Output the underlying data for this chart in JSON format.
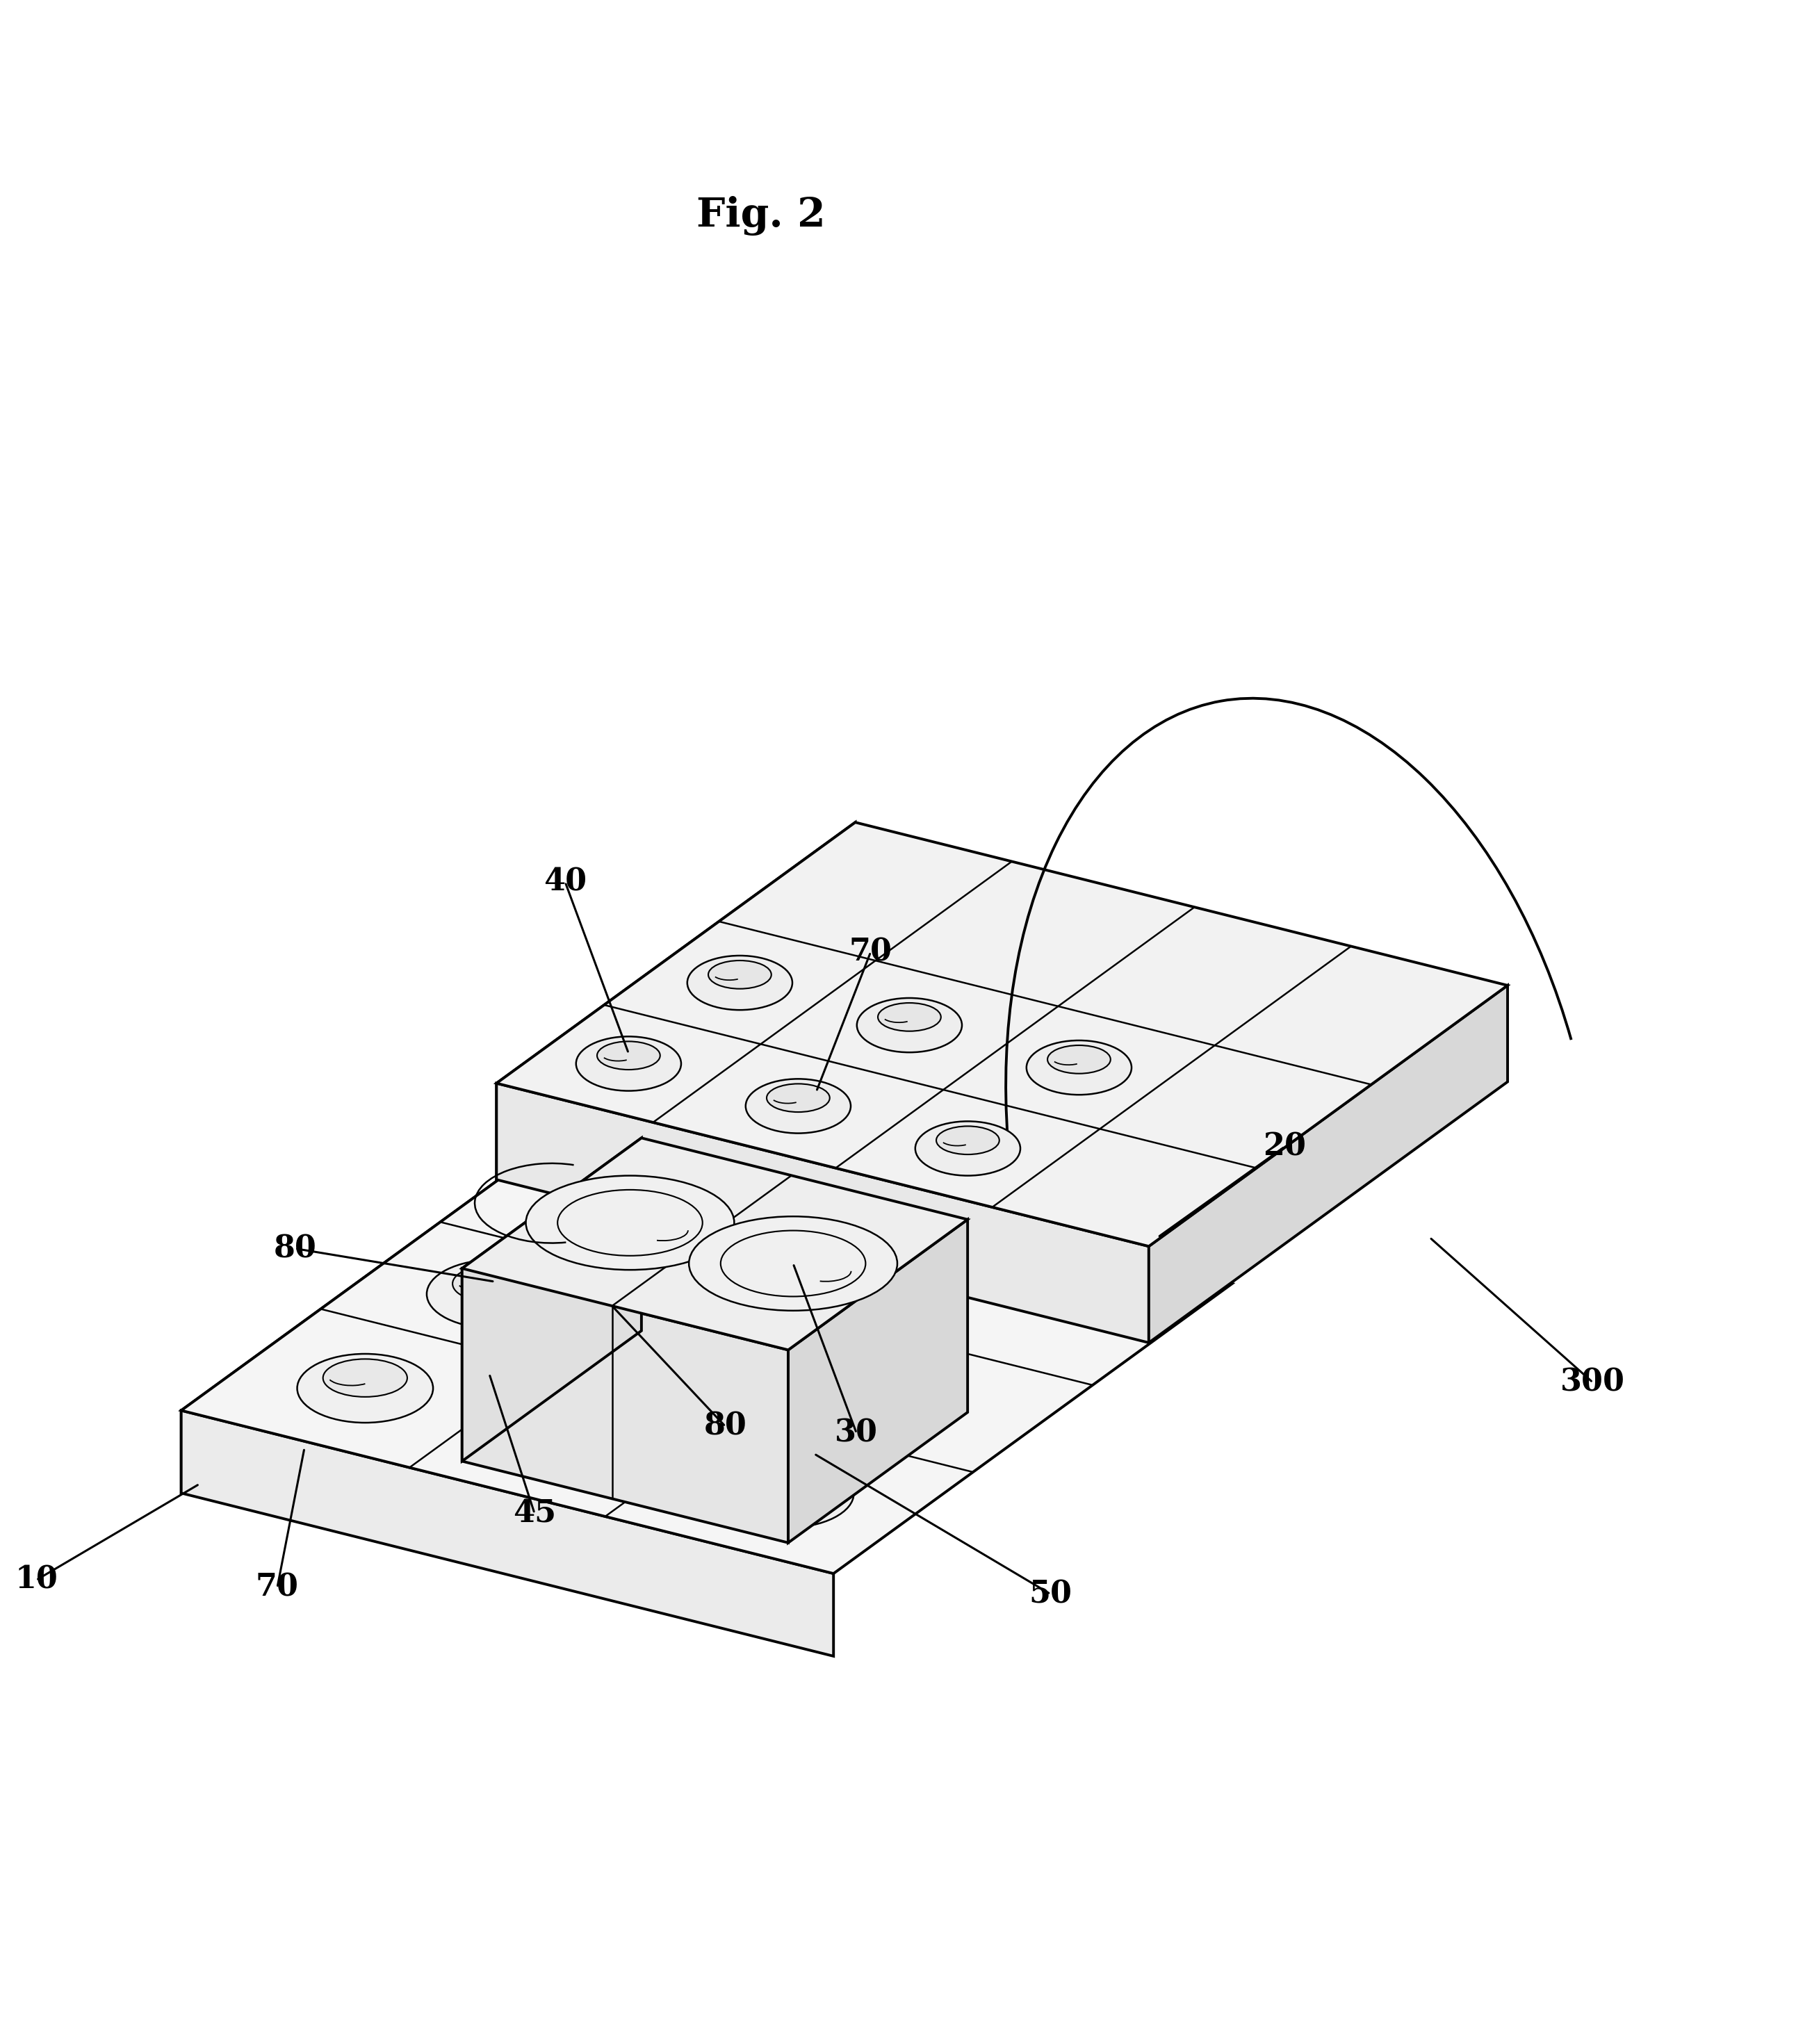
{
  "title": "Fig. 2",
  "background_color": "#ffffff",
  "line_color": "#000000",
  "fig_width": 26.07,
  "fig_height": 29.41
}
